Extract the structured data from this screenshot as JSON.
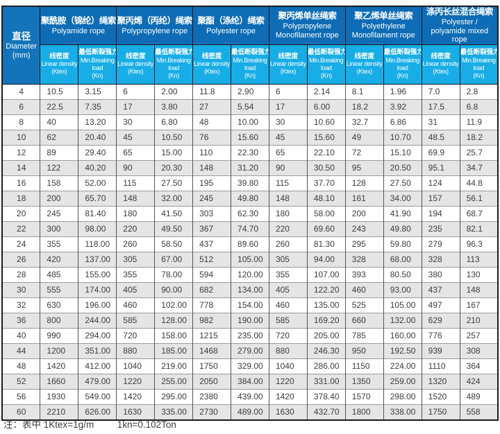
{
  "colors": {
    "group_header_bg": "#0d6cb5",
    "subheader_bg": "#18ade6",
    "diameter_header_bg": "#1474ba",
    "row_alt_bg": "#e5e5e6",
    "header_text": "#ffffff",
    "body_text": "#3c3c3e"
  },
  "table": {
    "diameter_header": {
      "zh": "直径",
      "en": "Diameter",
      "unit": "(mm)"
    },
    "groups": [
      {
        "zh": "聚酰胺（锦纶）绳索",
        "en": "Polyamide rope"
      },
      {
        "zh": "聚丙烯（丙纶）绳索",
        "en": "Polypropylene rope"
      },
      {
        "zh": "聚酯（涤纶）绳索",
        "en": "Polyester rope"
      },
      {
        "zh": "聚丙烯单丝绳索",
        "en": "Polypropylene Monofilament rope"
      },
      {
        "zh": "聚乙烯单丝绳索",
        "en": "Polyethylene Monofilament rope"
      },
      {
        "zh": "涤丙长丝混合绳索",
        "en": "Polyester / polyamide mixed rope"
      }
    ],
    "subheaders": {
      "density": {
        "lines": [
          "线密度",
          "Linear density",
          "(Ktex)"
        ]
      },
      "breaking": {
        "lines": [
          "最低断裂强力",
          "Min.Breaking",
          "load",
          "(Kn)"
        ]
      }
    },
    "rows": [
      [
        "4",
        "10.5",
        "3.15",
        "6",
        "2.00",
        "11.8",
        "2.90",
        "6",
        "2.14",
        "8.1",
        "1.96",
        "7.0",
        "2.8"
      ],
      [
        "6",
        "22.5",
        "7.35",
        "17",
        "3.80",
        "27",
        "5.54",
        "17",
        "6.00",
        "18.2",
        "3.92",
        "17.5",
        "6.8"
      ],
      [
        "8",
        "40",
        "13.20",
        "30",
        "6.80",
        "48",
        "10.00",
        "30",
        "10.60",
        "32.7",
        "6.86",
        "31",
        "11.9"
      ],
      [
        "10",
        "62",
        "20.40",
        "45",
        "10.50",
        "76",
        "15.60",
        "45",
        "15.60",
        "49",
        "10.70",
        "48.5",
        "18.2"
      ],
      [
        "12",
        "89",
        "29.40",
        "65",
        "15.00",
        "110",
        "22.30",
        "65",
        "22.10",
        "72",
        "15.10",
        "69.9",
        "25.7"
      ],
      [
        "14",
        "122",
        "40.20",
        "90",
        "20.30",
        "148",
        "31.20",
        "90",
        "30.50",
        "95",
        "20.50",
        "95.1",
        "34.7"
      ],
      [
        "16",
        "158",
        "52.00",
        "115",
        "27.50",
        "195",
        "39.80",
        "115",
        "37.70",
        "128",
        "27.50",
        "124",
        "44.8"
      ],
      [
        "18",
        "200",
        "65.70",
        "148",
        "32.00",
        "245",
        "49.80",
        "148",
        "48.10",
        "161",
        "34.00",
        "157",
        "56.1"
      ],
      [
        "20",
        "245",
        "81.40",
        "180",
        "41.50",
        "303",
        "62.30",
        "180",
        "58.00",
        "200",
        "41.90",
        "194",
        "68.7"
      ],
      [
        "22",
        "300",
        "98.00",
        "220",
        "49.50",
        "367",
        "74.70",
        "220",
        "69.60",
        "243",
        "49.80",
        "235",
        "82.1"
      ],
      [
        "24",
        "355",
        "118.00",
        "260",
        "58.50",
        "437",
        "89.60",
        "260",
        "81.30",
        "295",
        "59.80",
        "279",
        "96.3"
      ],
      [
        "26",
        "420",
        "137.00",
        "305",
        "67.00",
        "512",
        "105.00",
        "305",
        "94.00",
        "328",
        "68.00",
        "328",
        "113"
      ],
      [
        "28",
        "485",
        "155.00",
        "355",
        "78.00",
        "594",
        "120.00",
        "355",
        "107.00",
        "393",
        "80.50",
        "380",
        "130"
      ],
      [
        "30",
        "555",
        "174.00",
        "405",
        "90.00",
        "682",
        "134.00",
        "405",
        "122.20",
        "460",
        "93.00",
        "437",
        "148"
      ],
      [
        "32",
        "630",
        "196.00",
        "460",
        "102.00",
        "778",
        "154.00",
        "460",
        "135.00",
        "525",
        "105.00",
        "497",
        "167"
      ],
      [
        "36",
        "800",
        "244.00",
        "585",
        "128.00",
        "982",
        "190.00",
        "585",
        "169.20",
        "660",
        "132.00",
        "629",
        "210"
      ],
      [
        "40",
        "990",
        "294.00",
        "720",
        "158.00",
        "1215",
        "235.00",
        "720",
        "205.00",
        "785",
        "160.00",
        "776",
        "257"
      ],
      [
        "44",
        "1200",
        "351.00",
        "880",
        "185.00",
        "1468",
        "279.00",
        "880",
        "246.30",
        "950",
        "192.50",
        "939",
        "308"
      ],
      [
        "48",
        "1420",
        "412.00",
        "1040",
        "219.00",
        "1750",
        "329.00",
        "1040",
        "286.00",
        "1150",
        "224.00",
        "1110",
        "364"
      ],
      [
        "52",
        "1660",
        "479.00",
        "1220",
        "255.00",
        "2050",
        "384.00",
        "1220",
        "331.00",
        "1350",
        "259.00",
        "1320",
        "424"
      ],
      [
        "56",
        "1930",
        "549.00",
        "1420",
        "295.00",
        "2380",
        "439.00",
        "1420",
        "378.40",
        "1570",
        "298.00",
        "1520",
        "489"
      ],
      [
        "60",
        "2210",
        "626.00",
        "1630",
        "335.00",
        "2730",
        "489.00",
        "1630",
        "432.70",
        "1800",
        "338.00",
        "1750",
        "558"
      ]
    ]
  },
  "footnote": {
    "prefix": "注：表中",
    "ktex": "1Ktex=1g/m",
    "kn": "1kn=0.102Ton"
  }
}
